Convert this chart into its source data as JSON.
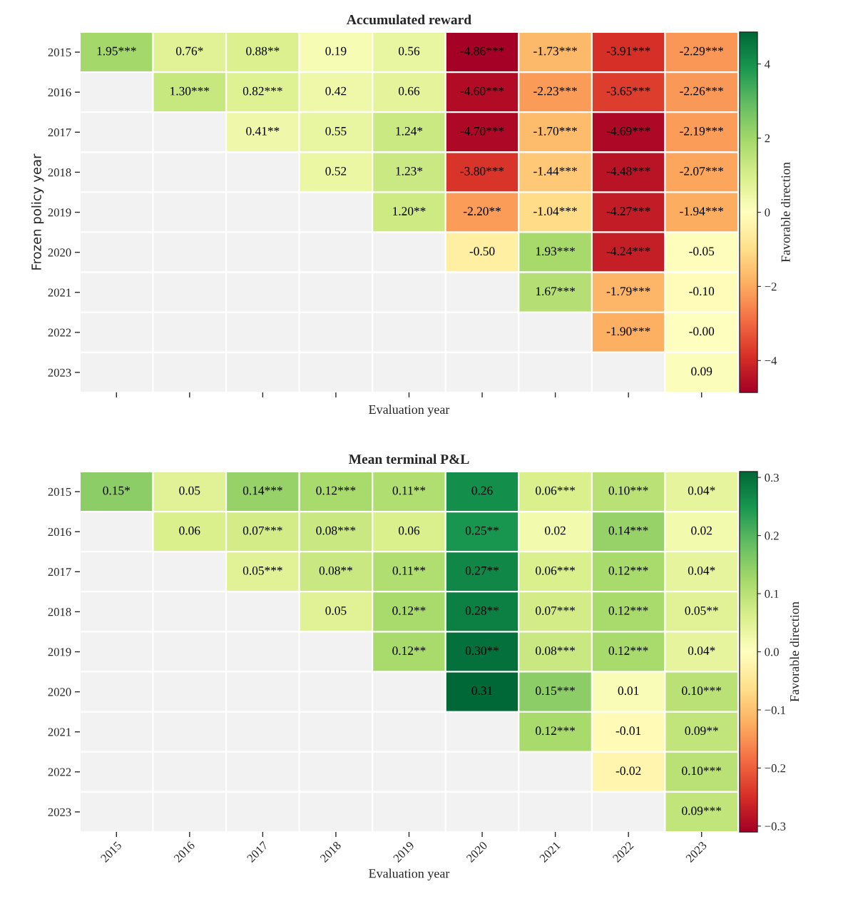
{
  "chart_data": [
    {
      "type": "heatmap",
      "title": "Accumulated reward",
      "xlabel": "Evaluation year",
      "ylabel": "Frozen policy year",
      "clabel": "Favorable direction",
      "categories": [
        "2015",
        "2016",
        "2017",
        "2018",
        "2019",
        "2020",
        "2021",
        "2022",
        "2023"
      ],
      "y_categories": [
        "2015",
        "2016",
        "2017",
        "2018",
        "2019",
        "2020",
        "2021",
        "2022",
        "2023"
      ],
      "cells": [
        [
          1.95,
          0.76,
          0.88,
          0.19,
          0.56,
          -4.86,
          -1.73,
          -3.91,
          -2.29
        ],
        [
          null,
          1.3,
          0.82,
          0.42,
          0.66,
          -4.6,
          -2.23,
          -3.65,
          -2.26
        ],
        [
          null,
          null,
          0.41,
          0.55,
          1.24,
          -4.7,
          -1.7,
          -4.69,
          -2.19
        ],
        [
          null,
          null,
          null,
          0.52,
          1.23,
          -3.8,
          -1.44,
          -4.48,
          -2.07
        ],
        [
          null,
          null,
          null,
          null,
          1.2,
          -2.2,
          -1.04,
          -4.27,
          -1.94
        ],
        [
          null,
          null,
          null,
          null,
          null,
          -0.5,
          1.93,
          -4.24,
          -0.05
        ],
        [
          null,
          null,
          null,
          null,
          null,
          null,
          1.67,
          -1.79,
          -0.1
        ],
        [
          null,
          null,
          null,
          null,
          null,
          null,
          null,
          -1.9,
          -0.0
        ],
        [
          null,
          null,
          null,
          null,
          null,
          null,
          null,
          null,
          0.09
        ]
      ],
      "cell_labels": [
        [
          "1.95***",
          "0.76*",
          "0.88**",
          "0.19",
          "0.56",
          "-4.86***",
          "-1.73***",
          "-3.91***",
          "-2.29***"
        ],
        [
          null,
          "1.30***",
          "0.82***",
          "0.42",
          "0.66",
          "-4.60***",
          "-2.23***",
          "-3.65***",
          "-2.26***"
        ],
        [
          null,
          null,
          "0.41**",
          "0.55",
          "1.24*",
          "-4.70***",
          "-1.70***",
          "-4.69***",
          "-2.19***"
        ],
        [
          null,
          null,
          null,
          "0.52",
          "1.23*",
          "-3.80***",
          "-1.44***",
          "-4.48***",
          "-2.07***"
        ],
        [
          null,
          null,
          null,
          null,
          "1.20**",
          "-2.20**",
          "-1.04***",
          "-4.27***",
          "-1.94***"
        ],
        [
          null,
          null,
          null,
          null,
          null,
          "-0.50",
          "1.93***",
          "-4.24***",
          "-0.05"
        ],
        [
          null,
          null,
          null,
          null,
          null,
          null,
          "1.67***",
          "-1.79***",
          "-0.10"
        ],
        [
          null,
          null,
          null,
          null,
          null,
          null,
          null,
          "-1.90***",
          "-0.00"
        ],
        [
          null,
          null,
          null,
          null,
          null,
          null,
          null,
          null,
          "0.09"
        ]
      ],
      "clim": [
        -4.86,
        4.86
      ],
      "cticks": [
        {
          "value": -4,
          "label": "−4"
        },
        {
          "value": -2,
          "label": "−2"
        },
        0,
        2,
        4
      ],
      "tick_labels": "y"
    },
    {
      "type": "heatmap",
      "title": "Mean terminal P&L",
      "xlabel": "Evaluation year",
      "clabel": "Favorable direction",
      "categories": [
        "2015",
        "2016",
        "2017",
        "2018",
        "2019",
        "2020",
        "2021",
        "2022",
        "2023"
      ],
      "y_categories": [
        "2015",
        "2016",
        "2017",
        "2018",
        "2019",
        "2020",
        "2021",
        "2022",
        "2023"
      ],
      "cells": [
        [
          0.15,
          0.05,
          0.14,
          0.12,
          0.11,
          0.26,
          0.06,
          0.1,
          0.04
        ],
        [
          null,
          0.06,
          0.07,
          0.08,
          0.06,
          0.25,
          0.02,
          0.14,
          0.02
        ],
        [
          null,
          null,
          0.05,
          0.08,
          0.11,
          0.27,
          0.06,
          0.12,
          0.04
        ],
        [
          null,
          null,
          null,
          0.05,
          0.12,
          0.28,
          0.07,
          0.12,
          0.05
        ],
        [
          null,
          null,
          null,
          null,
          0.12,
          0.3,
          0.08,
          0.12,
          0.04
        ],
        [
          null,
          null,
          null,
          null,
          null,
          0.31,
          0.15,
          0.01,
          0.1
        ],
        [
          null,
          null,
          null,
          null,
          null,
          null,
          0.12,
          -0.01,
          0.09
        ],
        [
          null,
          null,
          null,
          null,
          null,
          null,
          null,
          -0.02,
          0.1
        ],
        [
          null,
          null,
          null,
          null,
          null,
          null,
          null,
          null,
          0.09
        ]
      ],
      "cell_labels": [
        [
          "0.15*",
          "0.05",
          "0.14***",
          "0.12***",
          "0.11**",
          "0.26",
          "0.06***",
          "0.10***",
          "0.04*"
        ],
        [
          null,
          "0.06",
          "0.07***",
          "0.08***",
          "0.06",
          "0.25**",
          "0.02",
          "0.14***",
          "0.02"
        ],
        [
          null,
          null,
          "0.05***",
          "0.08**",
          "0.11**",
          "0.27**",
          "0.06***",
          "0.12***",
          "0.04*"
        ],
        [
          null,
          null,
          null,
          "0.05",
          "0.12**",
          "0.28**",
          "0.07***",
          "0.12***",
          "0.05**"
        ],
        [
          null,
          null,
          null,
          null,
          "0.12**",
          "0.30**",
          "0.08***",
          "0.12***",
          "0.04*"
        ],
        [
          null,
          null,
          null,
          null,
          null,
          "0.31",
          "0.15***",
          "0.01",
          "0.10***"
        ],
        [
          null,
          null,
          null,
          null,
          null,
          null,
          "0.12***",
          "-0.01",
          "0.09**"
        ],
        [
          null,
          null,
          null,
          null,
          null,
          null,
          null,
          "-0.02",
          "0.10***"
        ],
        [
          null,
          null,
          null,
          null,
          null,
          null,
          null,
          null,
          "0.09***"
        ]
      ],
      "clim": [
        -0.31,
        0.31
      ],
      "cticks": [
        {
          "value": -0.3,
          "label": "−0.3"
        },
        {
          "value": -0.2,
          "label": "−0.2"
        },
        {
          "value": -0.1,
          "label": "−0.1"
        },
        {
          "value": 0,
          "label": "0.0"
        },
        0.1,
        0.2,
        0.3
      ]
    }
  ]
}
